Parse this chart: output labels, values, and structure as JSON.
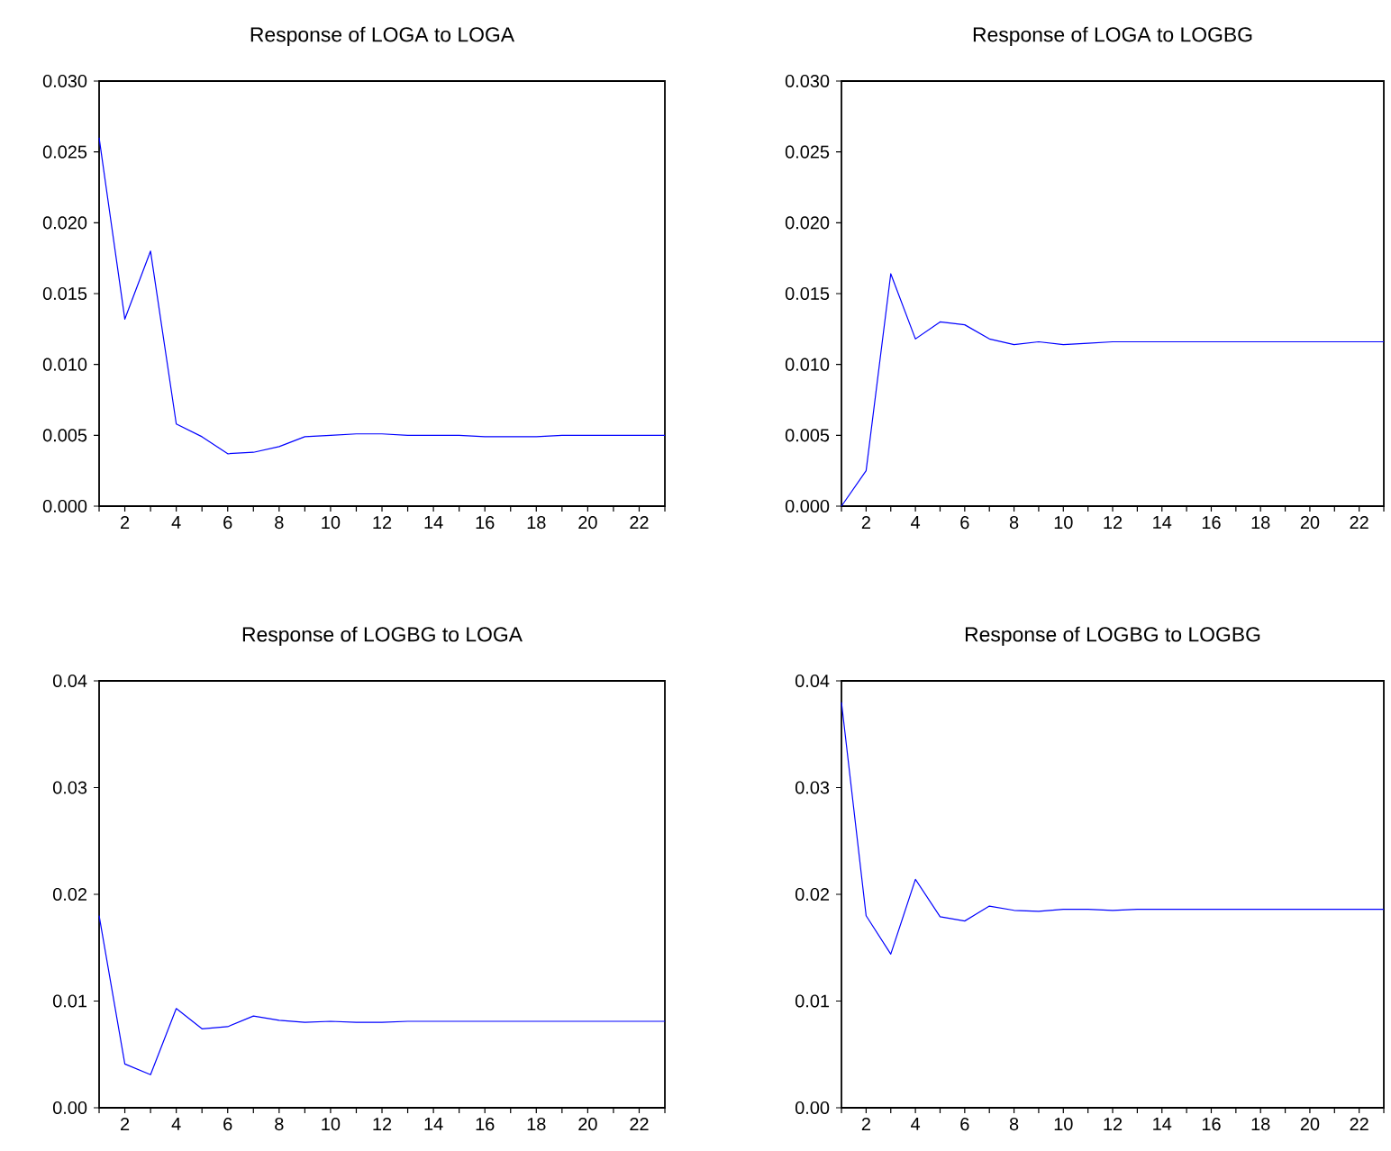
{
  "chart_data": [
    {
      "type": "line",
      "title": "Response of LOGA to LOGA",
      "x": [
        1,
        2,
        3,
        4,
        5,
        6,
        7,
        8,
        9,
        10,
        11,
        12,
        13,
        14,
        15,
        16,
        17,
        18,
        19,
        20,
        21,
        22,
        23
      ],
      "values": [
        0.026,
        0.0132,
        0.018,
        0.0058,
        0.0049,
        0.0037,
        0.0038,
        0.0042,
        0.0049,
        0.005,
        0.0051,
        0.0051,
        0.005,
        0.005,
        0.005,
        0.0049,
        0.0049,
        0.0049,
        0.005,
        0.005,
        0.005,
        0.005,
        0.005
      ],
      "color": "#0000ff",
      "xlim": [
        1,
        23
      ],
      "ylim": [
        0,
        0.03
      ],
      "xticks": [
        {
          "value": 1,
          "label": null
        },
        2,
        {
          "value": 3,
          "label": null
        },
        4,
        {
          "value": 5,
          "label": null
        },
        6,
        {
          "value": 7,
          "label": null
        },
        8,
        {
          "value": 9,
          "label": null
        },
        10,
        {
          "value": 11,
          "label": null
        },
        12,
        {
          "value": 13,
          "label": null
        },
        14,
        {
          "value": 15,
          "label": null
        },
        16,
        {
          "value": 17,
          "label": null
        },
        18,
        {
          "value": 19,
          "label": null
        },
        20,
        {
          "value": 21,
          "label": null
        },
        22,
        {
          "value": 23,
          "label": null
        }
      ],
      "yticks": [
        {
          "value": 0,
          "label": "0.000"
        },
        {
          "value": 0.005,
          "label": "0.005"
        },
        {
          "value": 0.01,
          "label": "0.010"
        },
        {
          "value": 0.015,
          "label": "0.015"
        },
        {
          "value": 0.02,
          "label": "0.020"
        },
        {
          "value": 0.025,
          "label": "0.025"
        },
        {
          "value": 0.03,
          "label": "0.030"
        }
      ]
    },
    {
      "type": "line",
      "title": "Response of LOGA to LOGBG",
      "x": [
        1,
        2,
        3,
        4,
        5,
        6,
        7,
        8,
        9,
        10,
        11,
        12,
        13,
        14,
        15,
        16,
        17,
        18,
        19,
        20,
        21,
        22,
        23
      ],
      "values": [
        0.0,
        0.0025,
        0.0164,
        0.0118,
        0.013,
        0.0128,
        0.0118,
        0.0114,
        0.0116,
        0.0114,
        0.0115,
        0.0116,
        0.0116,
        0.0116,
        0.0116,
        0.0116,
        0.0116,
        0.0116,
        0.0116,
        0.0116,
        0.0116,
        0.0116,
        0.0116
      ],
      "color": "#0000ff",
      "xlim": [
        1,
        23
      ],
      "ylim": [
        0,
        0.03
      ],
      "xticks": [
        {
          "value": 1,
          "label": null
        },
        2,
        {
          "value": 3,
          "label": null
        },
        4,
        {
          "value": 5,
          "label": null
        },
        6,
        {
          "value": 7,
          "label": null
        },
        8,
        {
          "value": 9,
          "label": null
        },
        10,
        {
          "value": 11,
          "label": null
        },
        12,
        {
          "value": 13,
          "label": null
        },
        14,
        {
          "value": 15,
          "label": null
        },
        16,
        {
          "value": 17,
          "label": null
        },
        18,
        {
          "value": 19,
          "label": null
        },
        20,
        {
          "value": 21,
          "label": null
        },
        22,
        {
          "value": 23,
          "label": null
        }
      ],
      "yticks": [
        {
          "value": 0,
          "label": "0.000"
        },
        {
          "value": 0.005,
          "label": "0.005"
        },
        {
          "value": 0.01,
          "label": "0.010"
        },
        {
          "value": 0.015,
          "label": "0.015"
        },
        {
          "value": 0.02,
          "label": "0.020"
        },
        {
          "value": 0.025,
          "label": "0.025"
        },
        {
          "value": 0.03,
          "label": "0.030"
        }
      ]
    },
    {
      "type": "line",
      "title": "Response of LOGBG to LOGA",
      "x": [
        1,
        2,
        3,
        4,
        5,
        6,
        7,
        8,
        9,
        10,
        11,
        12,
        13,
        14,
        15,
        16,
        17,
        18,
        19,
        20,
        21,
        22,
        23
      ],
      "values": [
        0.018,
        0.0041,
        0.0031,
        0.0093,
        0.0074,
        0.0076,
        0.0086,
        0.0082,
        0.008,
        0.0081,
        0.008,
        0.008,
        0.0081,
        0.0081,
        0.0081,
        0.0081,
        0.0081,
        0.0081,
        0.0081,
        0.0081,
        0.0081,
        0.0081,
        0.0081
      ],
      "color": "#0000ff",
      "xlim": [
        1,
        23
      ],
      "ylim": [
        0,
        0.04
      ],
      "xticks": [
        {
          "value": 1,
          "label": null
        },
        2,
        {
          "value": 3,
          "label": null
        },
        4,
        {
          "value": 5,
          "label": null
        },
        6,
        {
          "value": 7,
          "label": null
        },
        8,
        {
          "value": 9,
          "label": null
        },
        10,
        {
          "value": 11,
          "label": null
        },
        12,
        {
          "value": 13,
          "label": null
        },
        14,
        {
          "value": 15,
          "label": null
        },
        16,
        {
          "value": 17,
          "label": null
        },
        18,
        {
          "value": 19,
          "label": null
        },
        20,
        {
          "value": 21,
          "label": null
        },
        22,
        {
          "value": 23,
          "label": null
        }
      ],
      "yticks": [
        {
          "value": 0,
          "label": "0.00"
        },
        {
          "value": 0.01,
          "label": "0.01"
        },
        {
          "value": 0.02,
          "label": "0.02"
        },
        {
          "value": 0.03,
          "label": "0.03"
        },
        {
          "value": 0.04,
          "label": "0.04"
        }
      ]
    },
    {
      "type": "line",
      "title": "Response of LOGBG to LOGBG",
      "x": [
        1,
        2,
        3,
        4,
        5,
        6,
        7,
        8,
        9,
        10,
        11,
        12,
        13,
        14,
        15,
        16,
        17,
        18,
        19,
        20,
        21,
        22,
        23
      ],
      "values": [
        0.038,
        0.018,
        0.0144,
        0.0214,
        0.0179,
        0.0175,
        0.0189,
        0.0185,
        0.0184,
        0.0186,
        0.0186,
        0.0185,
        0.0186,
        0.0186,
        0.0186,
        0.0186,
        0.0186,
        0.0186,
        0.0186,
        0.0186,
        0.0186,
        0.0186,
        0.0186
      ],
      "color": "#0000ff",
      "xlim": [
        1,
        23
      ],
      "ylim": [
        0,
        0.04
      ],
      "xticks": [
        {
          "value": 1,
          "label": null
        },
        2,
        {
          "value": 3,
          "label": null
        },
        4,
        {
          "value": 5,
          "label": null
        },
        6,
        {
          "value": 7,
          "label": null
        },
        8,
        {
          "value": 9,
          "label": null
        },
        10,
        {
          "value": 11,
          "label": null
        },
        12,
        {
          "value": 13,
          "label": null
        },
        14,
        {
          "value": 15,
          "label": null
        },
        16,
        {
          "value": 17,
          "label": null
        },
        18,
        {
          "value": 19,
          "label": null
        },
        20,
        {
          "value": 21,
          "label": null
        },
        22,
        {
          "value": 23,
          "label": null
        }
      ],
      "yticks": [
        {
          "value": 0,
          "label": "0.00"
        },
        {
          "value": 0.01,
          "label": "0.01"
        },
        {
          "value": 0.02,
          "label": "0.02"
        },
        {
          "value": 0.03,
          "label": "0.03"
        },
        {
          "value": 0.04,
          "label": "0.04"
        }
      ]
    }
  ]
}
